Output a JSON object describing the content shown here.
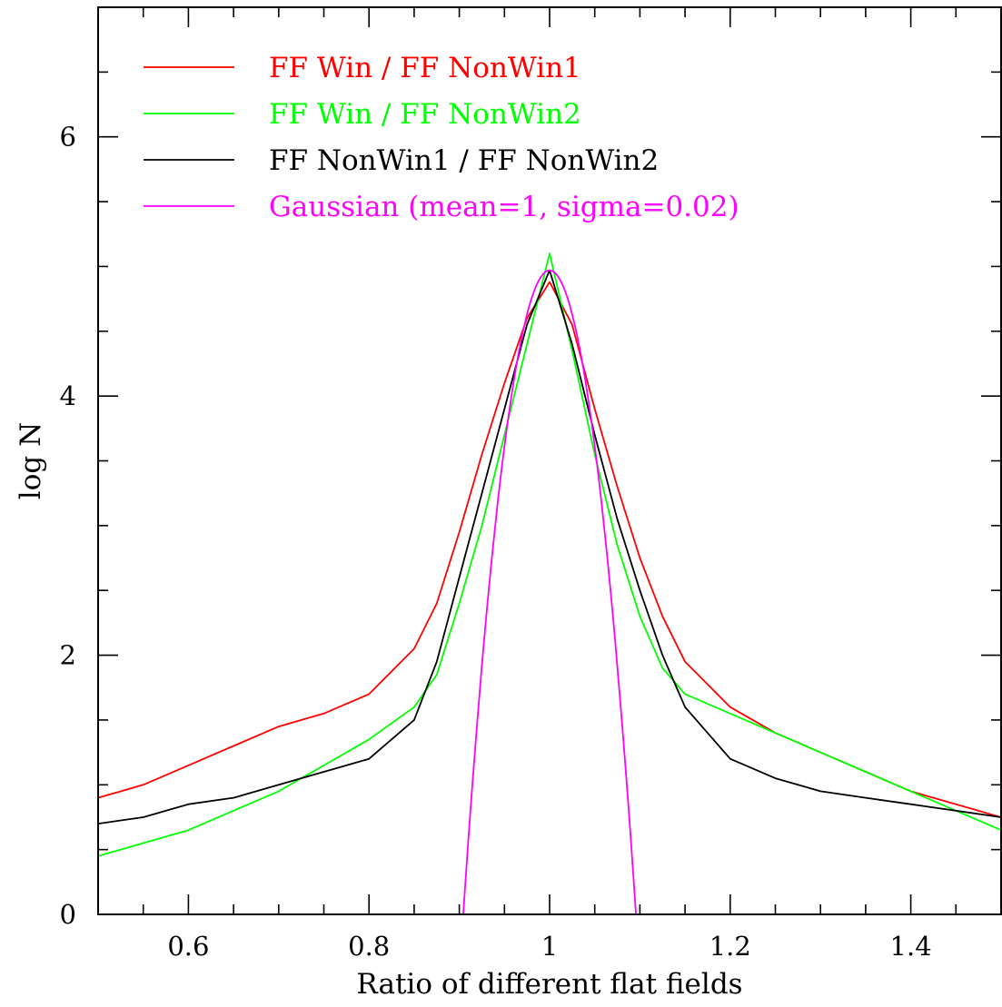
{
  "chart_data": {
    "type": "line",
    "xlabel": "Ratio of different flat fields",
    "ylabel": "log N",
    "xlim": [
      0.5,
      1.5
    ],
    "ylim": [
      0,
      7
    ],
    "xticks_major": [
      0.6,
      0.8,
      1.0,
      1.2,
      1.4
    ],
    "xtick_labels": [
      "0.6",
      "0.8",
      "1",
      "1.2",
      "1.4"
    ],
    "yticks_major": [
      0,
      2,
      4,
      6
    ],
    "ytick_labels": [
      "0",
      "2",
      "4",
      "6"
    ],
    "legend_placement": "top-left",
    "grid": false,
    "series": [
      {
        "name": "FF Win / FF NonWin1",
        "color": "#ff0000",
        "x": [
          0.5,
          0.55,
          0.6,
          0.65,
          0.7,
          0.75,
          0.8,
          0.85,
          0.875,
          0.9,
          0.925,
          0.95,
          0.975,
          1.0,
          1.025,
          1.05,
          1.075,
          1.1,
          1.125,
          1.15,
          1.2,
          1.25,
          1.3,
          1.35,
          1.4,
          1.45,
          1.5
        ],
        "y": [
          0.9,
          1.0,
          1.15,
          1.3,
          1.45,
          1.55,
          1.7,
          2.05,
          2.4,
          2.95,
          3.55,
          4.1,
          4.6,
          4.88,
          4.55,
          3.9,
          3.3,
          2.75,
          2.3,
          1.95,
          1.6,
          1.4,
          1.25,
          1.1,
          0.95,
          0.85,
          0.75
        ]
      },
      {
        "name": "FF Win / FF NonWin2",
        "color": "#00ff00",
        "x": [
          0.5,
          0.55,
          0.6,
          0.65,
          0.7,
          0.75,
          0.8,
          0.85,
          0.875,
          0.9,
          0.925,
          0.95,
          0.975,
          1.0,
          1.025,
          1.05,
          1.075,
          1.1,
          1.125,
          1.15,
          1.2,
          1.25,
          1.3,
          1.35,
          1.4,
          1.45,
          1.5
        ],
        "y": [
          0.45,
          0.55,
          0.65,
          0.8,
          0.95,
          1.15,
          1.35,
          1.6,
          1.85,
          2.4,
          3.0,
          3.7,
          4.4,
          5.1,
          4.35,
          3.55,
          2.85,
          2.3,
          1.9,
          1.7,
          1.55,
          1.4,
          1.25,
          1.1,
          0.95,
          0.8,
          0.65
        ]
      },
      {
        "name": "FF NonWin1 / FF NonWin2",
        "color": "#000000",
        "x": [
          0.5,
          0.55,
          0.6,
          0.65,
          0.7,
          0.75,
          0.8,
          0.85,
          0.875,
          0.9,
          0.925,
          0.95,
          0.975,
          1.0,
          1.025,
          1.05,
          1.075,
          1.1,
          1.125,
          1.15,
          1.2,
          1.25,
          1.3,
          1.35,
          1.4,
          1.45,
          1.5
        ],
        "y": [
          0.7,
          0.75,
          0.85,
          0.9,
          1.0,
          1.1,
          1.2,
          1.5,
          1.95,
          2.6,
          3.25,
          3.9,
          4.55,
          4.97,
          4.4,
          3.7,
          3.05,
          2.5,
          2.0,
          1.6,
          1.2,
          1.05,
          0.95,
          0.9,
          0.85,
          0.8,
          0.75
        ]
      },
      {
        "name": "Gaussian (mean=1, sigma=0.02)",
        "color": "#ff00ff",
        "function": "gaussian",
        "mean": 1,
        "sigma": 0.02,
        "peak_logN": 4.97
      }
    ]
  }
}
